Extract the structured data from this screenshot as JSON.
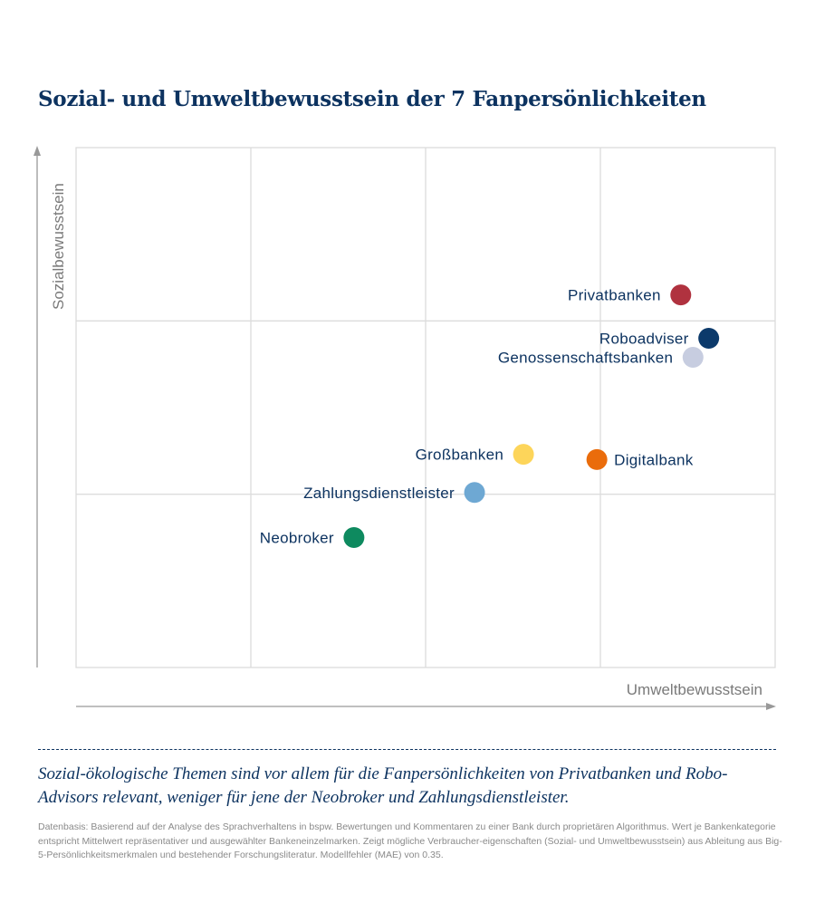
{
  "title": "Sozial- und Umweltbewusstsein der 7 Fanpersönlichkeiten",
  "chart_data": {
    "type": "scatter",
    "title": "Sozial- und Umweltbewusstsein der 7 Fanpersönlichkeiten",
    "xlabel": "Umweltbewusstsein",
    "ylabel": "Sozialbewusstsein",
    "xlim": [
      0,
      4
    ],
    "ylim": [
      0,
      3
    ],
    "grid": true,
    "tick_labels": false,
    "points": [
      {
        "label": "Privatbanken",
        "x": 3.46,
        "y": 2.15,
        "color": "#b0323f",
        "label_side": "left"
      },
      {
        "label": "Roboadviser",
        "x": 3.62,
        "y": 1.9,
        "color": "#0c3a6b",
        "label_side": "left"
      },
      {
        "label": "Genossenschaftsbanken",
        "x": 3.53,
        "y": 1.79,
        "color": "#c7cde0",
        "label_side": "left"
      },
      {
        "label": "Großbanken",
        "x": 2.56,
        "y": 1.23,
        "color": "#fdd55a",
        "label_side": "left"
      },
      {
        "label": "Digitalbank",
        "x": 2.98,
        "y": 1.2,
        "color": "#ea6c0b",
        "label_side": "right"
      },
      {
        "label": "Zahlungsdienstleister",
        "x": 2.28,
        "y": 1.01,
        "color": "#6ea8d3",
        "label_side": "left"
      },
      {
        "label": "Neobroker",
        "x": 1.59,
        "y": 0.75,
        "color": "#0e8a5f",
        "label_side": "left"
      }
    ]
  },
  "subtitle": "Sozial-ökologische Themen sind vor allem für die Fanpersönlichkeiten von Privatbanken und Robo-Advisors relevant, weniger für jene der Neobroker und Zahlungsdienstleister.",
  "footnote": "Datenbasis: Basierend auf der Analyse des Sprachverhaltens in bspw. Bewertungen und Kommentaren zu einer Bank durch proprietären Algorithmus. Wert je Bankenkategorie entspricht Mittelwert repräsentativer und ausgewählter Bankeneinzelmarken. Zeigt mögliche Verbraucher-eigenschaften (Sozial- und Umweltbewusstsein) aus Ableitung aus Big-5-Persönlichkeitsmerkmalen und bestehender Forschungsliteratur. Modellfehler (MAE) von 0.35."
}
